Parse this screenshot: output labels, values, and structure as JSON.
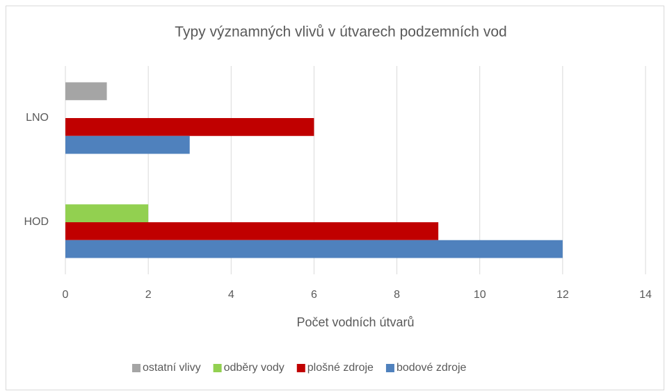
{
  "chart_data": {
    "type": "barh",
    "title": "Typy významných vlivů v útvarech podzemních vod",
    "x_label": "Počet vodních útvarů",
    "categories": [
      "HOD",
      "LNO"
    ],
    "series": [
      {
        "name": "ostatní vlivy",
        "color": "#a5a5a5",
        "values": [
          0,
          1
        ]
      },
      {
        "name": "odběry vody",
        "color": "#92d050",
        "values": [
          2,
          0
        ]
      },
      {
        "name": "plošné zdroje",
        "color": "#c00000",
        "values": [
          9,
          6
        ]
      },
      {
        "name": "bodové zdroje",
        "color": "#4f81bd",
        "values": [
          12,
          3
        ]
      }
    ],
    "xlim": [
      0,
      14
    ],
    "xticks": [
      0,
      2,
      4,
      6,
      8,
      10,
      12,
      14
    ],
    "grid": true,
    "legend": "bottom"
  }
}
